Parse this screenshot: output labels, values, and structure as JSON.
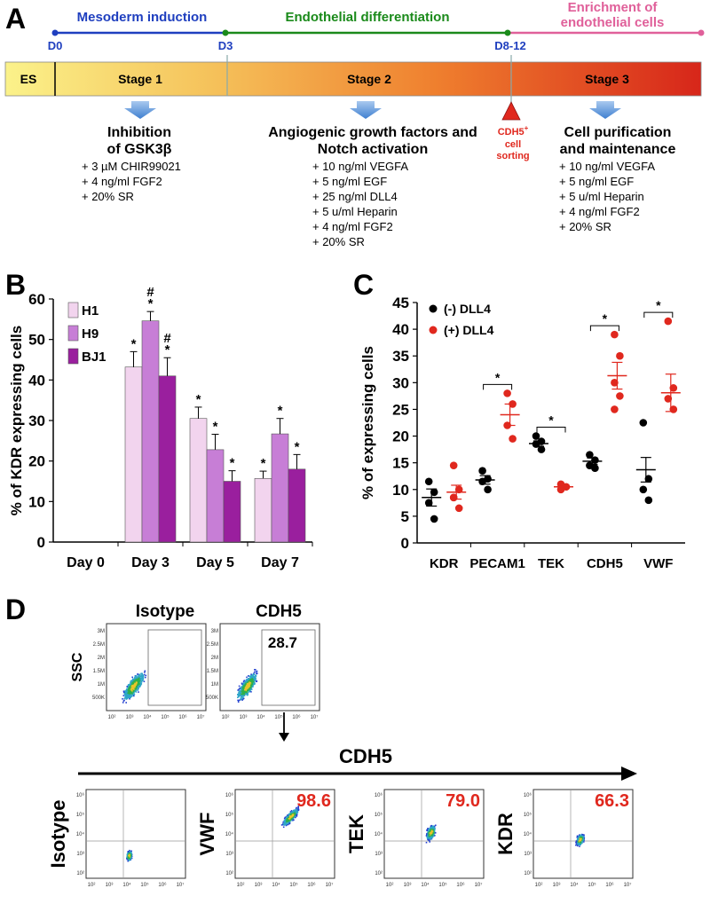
{
  "panels": {
    "a": "A",
    "b": "B",
    "c": "C",
    "d": "D"
  },
  "panelA": {
    "phases": [
      {
        "label": "Mesoderm induction",
        "color": "#1f3fbf"
      },
      {
        "label": "Endothelial differentiation",
        "color": "#1a8a1a"
      },
      {
        "label": "Enrichment of\nendothelial cells",
        "color": "#e0609a"
      }
    ],
    "days": [
      "D0",
      "D3",
      "D8-12"
    ],
    "stages": [
      "ES",
      "Stage 1",
      "Stage 2",
      "Stage 3"
    ],
    "step1": {
      "title": "Inhibition\nof GSK3β",
      "items": [
        "+ 3 µM CHIR99021",
        "+ 4 ng/ml FGF2",
        "+ 20% SR"
      ]
    },
    "step2": {
      "title": "Angiogenic growth factors and\nNotch activation",
      "items": [
        "+ 10 ng/ml VEGFA",
        "+ 5 ng/ml EGF",
        "+ 25 ng/ml DLL4",
        "+ 5 u/ml Heparin",
        "+ 4 ng/ml FGF2",
        "+ 20% SR"
      ]
    },
    "sorting": {
      "marker": "CDH5",
      "sup": "+",
      "text": "cell\nsorting"
    },
    "step3": {
      "title": "Cell purification\nand maintenance",
      "items": [
        "+ 10 ng/ml VEGFA",
        "+ 5 ng/ml EGF",
        "+ 5 u/ml Heparin",
        "+ 4 ng/ml FGF2",
        "+ 20% SR"
      ]
    }
  },
  "chart_data": [
    {
      "type": "bar",
      "ylabel": "% of KDR expressing cells",
      "ylim": [
        0,
        60
      ],
      "yticks": [
        0,
        10,
        20,
        30,
        40,
        50,
        60
      ],
      "categories": [
        "Day 0",
        "Day 3",
        "Day 5",
        "Day 7"
      ],
      "series": [
        {
          "name": "H1",
          "color": "#f2d4ee",
          "values": [
            0,
            43.2,
            30.5,
            15.7
          ],
          "errors": [
            0,
            3.8,
            2.8,
            1.8
          ],
          "marks": [
            "",
            "*",
            "*",
            "*"
          ]
        },
        {
          "name": "H9",
          "color": "#c77ed6",
          "values": [
            0,
            54.6,
            22.8,
            26.7
          ],
          "errors": [
            0,
            2.3,
            3.8,
            3.8
          ],
          "marks": [
            "",
            "#\n*",
            "*",
            "*"
          ]
        },
        {
          "name": "BJ1",
          "color": "#9a1f9e",
          "values": [
            0,
            41.0,
            15.0,
            18.0
          ],
          "errors": [
            0,
            4.5,
            2.6,
            3.6
          ],
          "marks": [
            "",
            "#\n*",
            "*",
            "*"
          ]
        }
      ],
      "legend": "top-left"
    },
    {
      "type": "scatter",
      "ylabel": "% of expressing cells",
      "ylim": [
        0,
        45
      ],
      "yticks": [
        0,
        5,
        10,
        15,
        20,
        25,
        30,
        35,
        40,
        45
      ],
      "categories": [
        "KDR",
        "PECAM1",
        "TEK",
        "CDH5",
        "VWF"
      ],
      "series": [
        {
          "name": "(-) DLL4",
          "color": "#000000",
          "points": [
            [
              11.5,
              9.5,
              7.5,
              4.5
            ],
            [
              13.5,
              12.0,
              11.5,
              10.0
            ],
            [
              20.0,
              19.0,
              18.5,
              17.5
            ],
            [
              16.5,
              15.5,
              14.5,
              14.0
            ],
            [
              22.5,
              12.0,
              10.0,
              8.0
            ]
          ],
          "mean": [
            8.5,
            11.8,
            18.6,
            15.3,
            13.7
          ],
          "sem": [
            1.6,
            0.8,
            0.5,
            0.6,
            2.3
          ]
        },
        {
          "name": "(+) DLL4",
          "color": "#e0281e",
          "points": [
            [
              14.5,
              10.0,
              8.5,
              6.5,
              8.5
            ],
            [
              28.0,
              26.0,
              22.0,
              19.5
            ],
            [
              11.0,
              10.5,
              10.0
            ],
            [
              39.0,
              35.0,
              30.0,
              27.5,
              25.0
            ],
            [
              41.5,
              29.0,
              27.0,
              25.0
            ]
          ],
          "mean": [
            9.5,
            24.0,
            10.5,
            31.3,
            28.1
          ],
          "sem": [
            1.3,
            2.0,
            0.3,
            2.5,
            3.5
          ]
        }
      ],
      "significance": [
        "",
        "*",
        "*",
        "*",
        "*"
      ],
      "legend": "top-left"
    }
  ],
  "panelD": {
    "top_titles": [
      "Isotype",
      "CDH5"
    ],
    "top_ylabel": "SSC",
    "top_yticks": [
      "3M",
      "2.5M",
      "2M",
      "1.5M",
      "1M",
      "500K"
    ],
    "top_value": "28.7",
    "arrow_label": "CDH5",
    "bottom_labels": [
      "Isotype",
      "VWF",
      "TEK",
      "KDR"
    ],
    "bottom_values": [
      "",
      "98.6",
      "79.0",
      "66.3"
    ],
    "xticks": [
      "10²",
      "10³",
      "10⁴",
      "10⁵",
      "10⁶",
      "10⁷"
    ],
    "yticks": [
      "10⁶",
      "10⁵",
      "10⁴",
      "10³",
      "10²"
    ]
  }
}
